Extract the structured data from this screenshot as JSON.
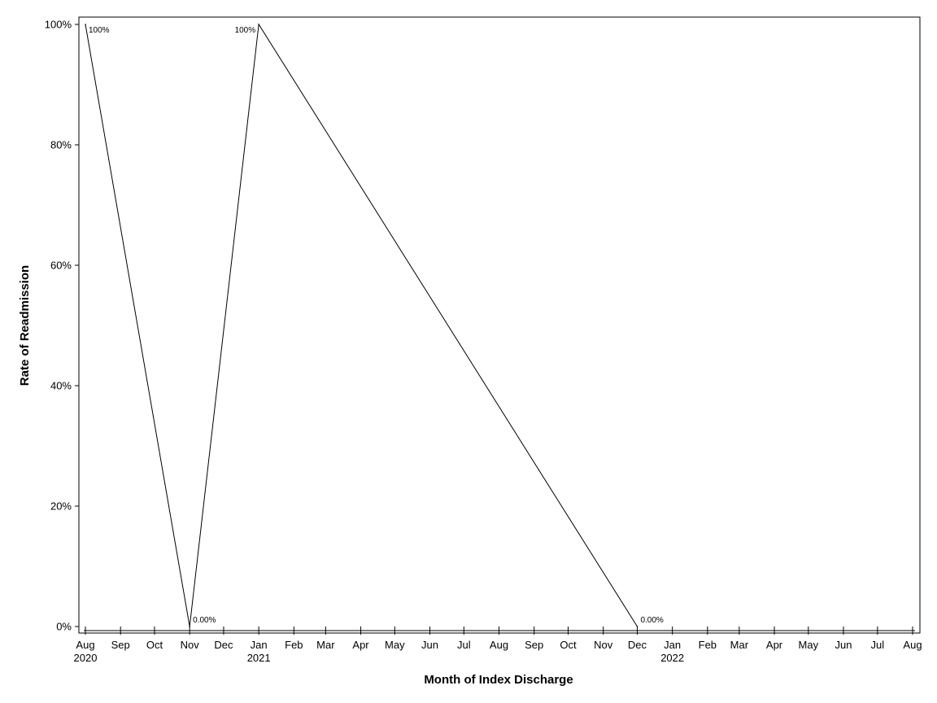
{
  "chart_data": {
    "type": "line",
    "title": "",
    "xlabel": "Month of Index Discharge",
    "ylabel": "Rate of Readmission",
    "x_range": [
      "2020-08",
      "2022-08"
    ],
    "ylim": [
      0,
      100
    ],
    "y_ticks": [
      0,
      20,
      40,
      60,
      80,
      100
    ],
    "y_tick_labels": [
      "0%",
      "20%",
      "40%",
      "60%",
      "80%",
      "100%"
    ],
    "x_tick_labels": [
      "Aug",
      "Sep",
      "Oct",
      "Nov",
      "Dec",
      "Jan",
      "Feb",
      "Mar",
      "Apr",
      "May",
      "Jun",
      "Jul",
      "Aug",
      "Sep",
      "Oct",
      "Nov",
      "Dec",
      "Jan",
      "Feb",
      "Mar",
      "Apr",
      "May",
      "Jun",
      "Jul",
      "Aug"
    ],
    "x_year_labels": [
      {
        "month": "2020-08",
        "label": "2020"
      },
      {
        "month": "2021-01",
        "label": "2021"
      },
      {
        "month": "2022-01",
        "label": "2022"
      }
    ],
    "grid": false,
    "legend": "none",
    "line_color": "#000000",
    "series": [
      {
        "points": [
          {
            "x": "2020-08-01",
            "y": 100,
            "label": "100%"
          },
          {
            "x": "2020-11-01",
            "y": 0,
            "label": "0.00%"
          },
          {
            "x": "2021-01-01",
            "y": 100,
            "label": "100%"
          },
          {
            "x": "2021-12-01",
            "y": 0,
            "label": "0.00%"
          }
        ]
      }
    ]
  }
}
